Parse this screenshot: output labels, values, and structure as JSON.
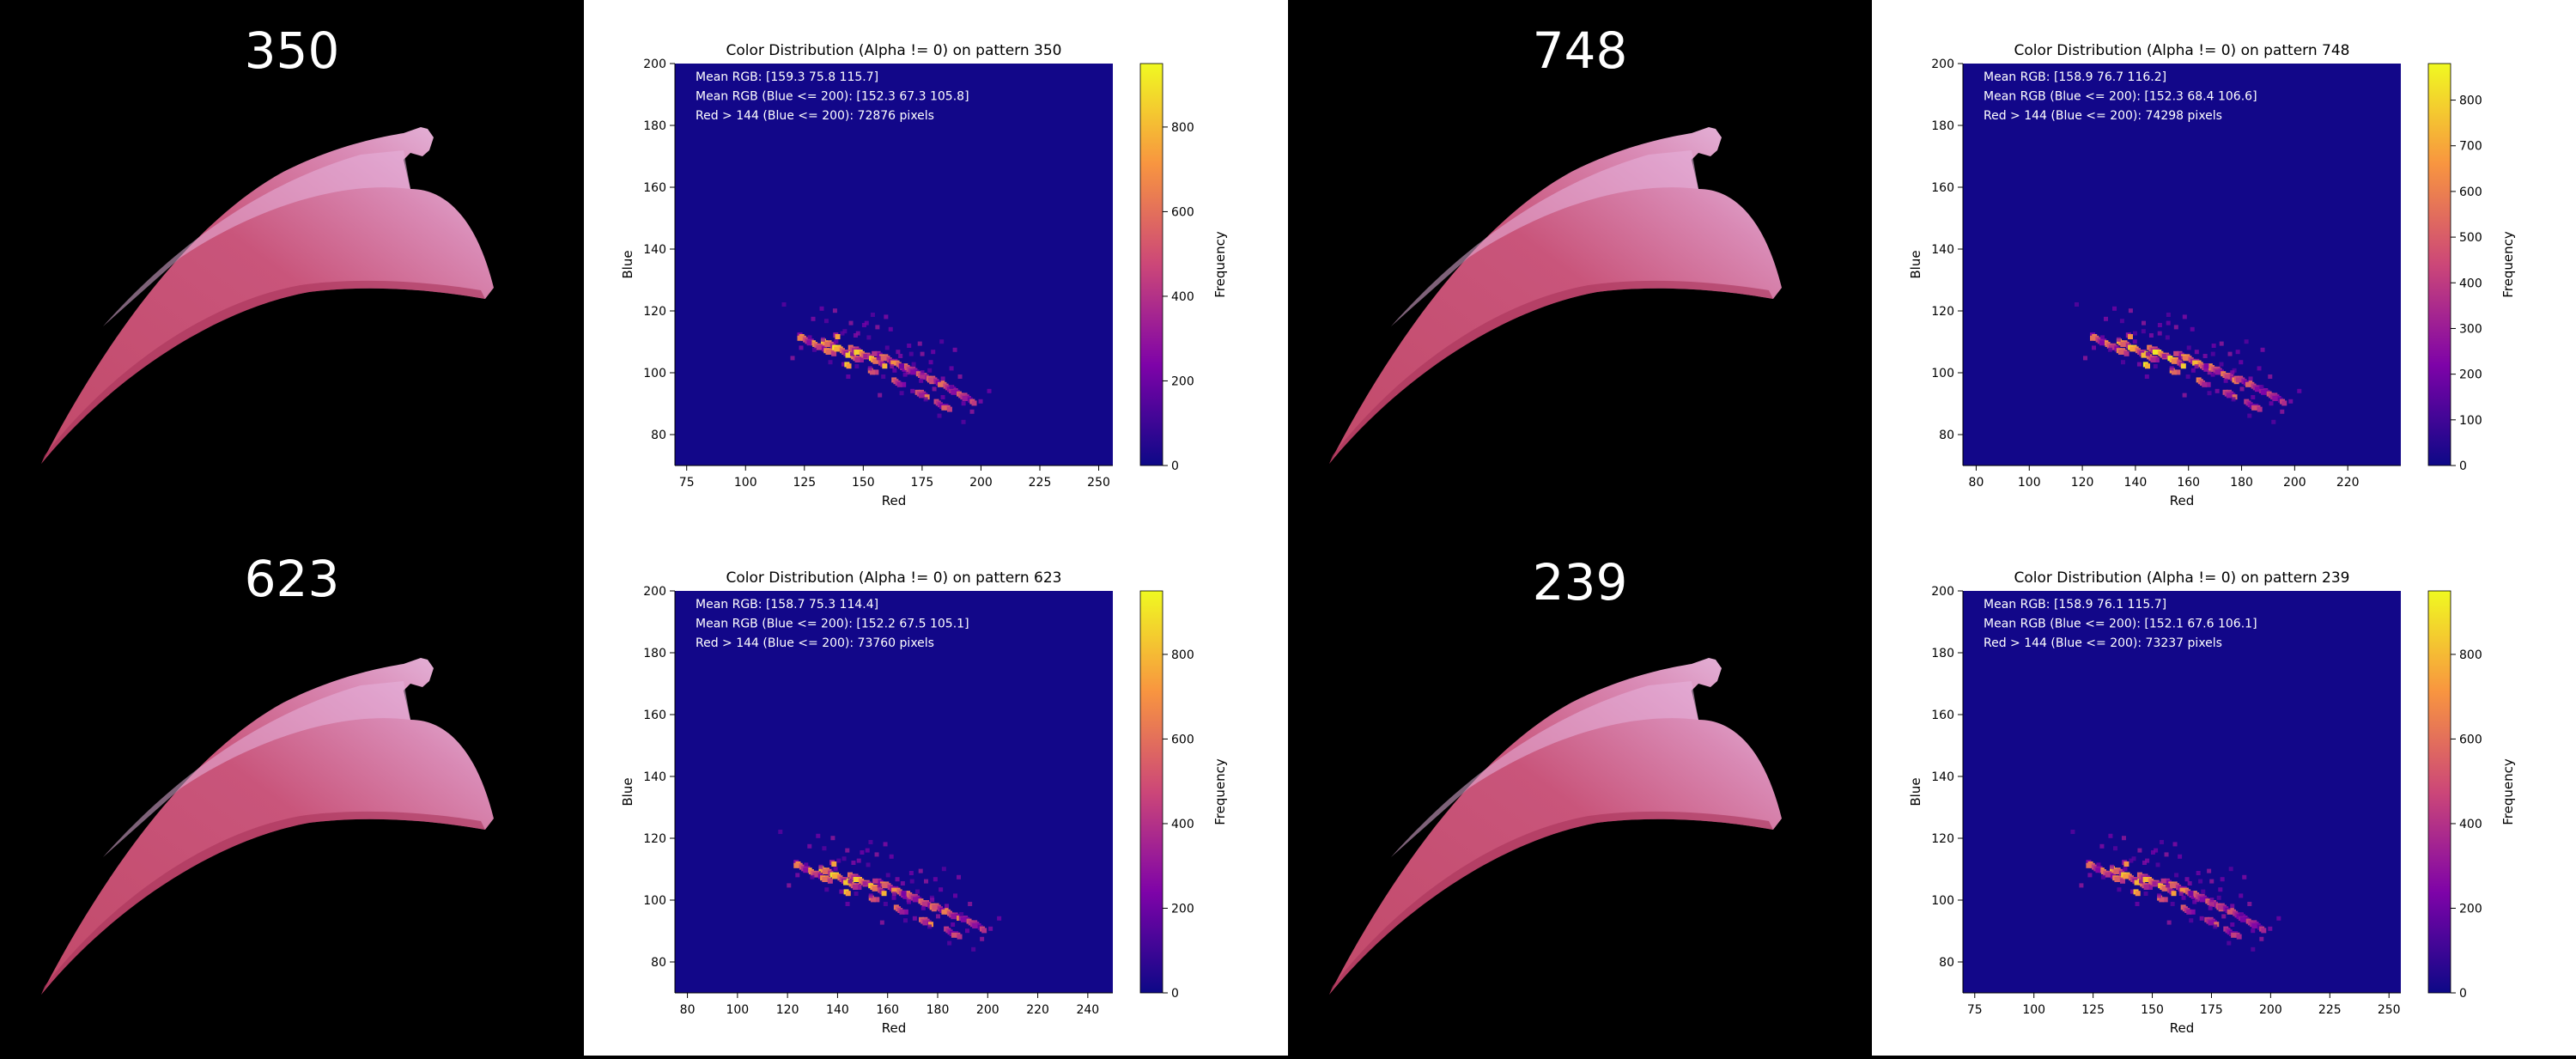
{
  "colors": {
    "blade_background": "#000000",
    "plot_background": "#ffffff",
    "heatmap_base": "#120789",
    "colormap": "plasma"
  },
  "panels": [
    {
      "pattern_label": "350",
      "blade_icon": "knife-blade-image"
    },
    {
      "pattern_label": "748",
      "blade_icon": "knife-blade-image"
    },
    {
      "pattern_label": "623",
      "blade_icon": "knife-blade-image"
    },
    {
      "pattern_label": "239",
      "blade_icon": "knife-blade-image"
    }
  ],
  "chart_data": [
    {
      "type": "heatmap",
      "title": "Color Distribution (Alpha != 0) on pattern 350",
      "xlabel": "Red",
      "ylabel": "Blue",
      "colorbar_label": "Frequency",
      "xlim": [
        70,
        256
      ],
      "ylim": [
        70,
        200
      ],
      "clim": [
        0,
        950
      ],
      "xticks": [
        75,
        100,
        125,
        150,
        175,
        200,
        225,
        250
      ],
      "yticks": [
        80,
        100,
        120,
        140,
        160,
        180,
        200
      ],
      "cticks": [
        0,
        200,
        400,
        600,
        800
      ],
      "annotations": [
        "Mean RGB: [159.3  75.8 115.7]",
        "Mean RGB (Blue <= 200): [152.3  67.3 105.8]",
        "Red > 144 (Blue <= 200): 72876 pixels"
      ],
      "density_trend": [
        {
          "red": 130,
          "blue": 110,
          "level": 750
        },
        {
          "red": 140,
          "blue": 108,
          "level": 900
        },
        {
          "red": 150,
          "blue": 106,
          "level": 850
        },
        {
          "red": 160,
          "blue": 104,
          "level": 700
        },
        {
          "red": 170,
          "blue": 100,
          "level": 600
        },
        {
          "red": 180,
          "blue": 96,
          "level": 650
        },
        {
          "red": 188,
          "blue": 92,
          "level": 550
        }
      ]
    },
    {
      "type": "heatmap",
      "title": "Color Distribution (Alpha != 0) on pattern 748",
      "xlabel": "Red",
      "ylabel": "Blue",
      "colorbar_label": "Frequency",
      "xlim": [
        75,
        240
      ],
      "ylim": [
        70,
        200
      ],
      "clim": [
        0,
        880
      ],
      "xticks": [
        80,
        100,
        120,
        140,
        160,
        180,
        200,
        220
      ],
      "yticks": [
        80,
        100,
        120,
        140,
        160,
        180,
        200
      ],
      "cticks": [
        0,
        100,
        200,
        300,
        400,
        500,
        600,
        700,
        800
      ],
      "annotations": [
        "Mean RGB: [158.9  76.7 116.2]",
        "Mean RGB (Blue <= 200): [152.3  68.4 106.6]",
        "Red > 144 (Blue <= 200): 74298 pixels"
      ],
      "density_trend": [
        {
          "red": 130,
          "blue": 110,
          "level": 650
        },
        {
          "red": 140,
          "blue": 108,
          "level": 800
        },
        {
          "red": 150,
          "blue": 106,
          "level": 850
        },
        {
          "red": 160,
          "blue": 104,
          "level": 750
        },
        {
          "red": 170,
          "blue": 100,
          "level": 650
        },
        {
          "red": 180,
          "blue": 96,
          "level": 550
        },
        {
          "red": 188,
          "blue": 92,
          "level": 450
        }
      ]
    },
    {
      "type": "heatmap",
      "title": "Color Distribution (Alpha != 0) on pattern 623",
      "xlabel": "Red",
      "ylabel": "Blue",
      "colorbar_label": "Frequency",
      "xlim": [
        75,
        250
      ],
      "ylim": [
        70,
        200
      ],
      "clim": [
        0,
        950
      ],
      "xticks": [
        80,
        100,
        120,
        140,
        160,
        180,
        200,
        220,
        240
      ],
      "yticks": [
        80,
        100,
        120,
        140,
        160,
        180,
        200
      ],
      "cticks": [
        0,
        200,
        400,
        600,
        800
      ],
      "annotations": [
        "Mean RGB: [158.7  75.3 114.4]",
        "Mean RGB (Blue <= 200): [152.2  67.5 105.1]",
        "Red > 144 (Blue <= 200): 73760 pixels"
      ],
      "density_trend": [
        {
          "red": 130,
          "blue": 110,
          "level": 750
        },
        {
          "red": 140,
          "blue": 108,
          "level": 900
        },
        {
          "red": 150,
          "blue": 106,
          "level": 850
        },
        {
          "red": 160,
          "blue": 104,
          "level": 700
        },
        {
          "red": 170,
          "blue": 100,
          "level": 650
        },
        {
          "red": 180,
          "blue": 96,
          "level": 700
        },
        {
          "red": 190,
          "blue": 92,
          "level": 500
        }
      ]
    },
    {
      "type": "heatmap",
      "title": "Color Distribution (Alpha != 0) on pattern 239",
      "xlabel": "Red",
      "ylabel": "Blue",
      "colorbar_label": "Frequency",
      "xlim": [
        70,
        255
      ],
      "ylim": [
        70,
        200
      ],
      "clim": [
        0,
        950
      ],
      "xticks": [
        75,
        100,
        125,
        150,
        175,
        200,
        225,
        250
      ],
      "yticks": [
        80,
        100,
        120,
        140,
        160,
        180,
        200
      ],
      "cticks": [
        0,
        200,
        400,
        600,
        800
      ],
      "annotations": [
        "Mean RGB: [158.9  76.1 115.7]",
        "Mean RGB (Blue <= 200): [152.1  67.6 106.1]",
        "Red > 144 (Blue <= 200): 73237 pixels"
      ],
      "density_trend": [
        {
          "red": 130,
          "blue": 110,
          "level": 700
        },
        {
          "red": 140,
          "blue": 108,
          "level": 850
        },
        {
          "red": 150,
          "blue": 106,
          "level": 800
        },
        {
          "red": 160,
          "blue": 104,
          "level": 700
        },
        {
          "red": 170,
          "blue": 100,
          "level": 600
        },
        {
          "red": 180,
          "blue": 96,
          "level": 550
        },
        {
          "red": 188,
          "blue": 92,
          "level": 450
        }
      ]
    }
  ]
}
